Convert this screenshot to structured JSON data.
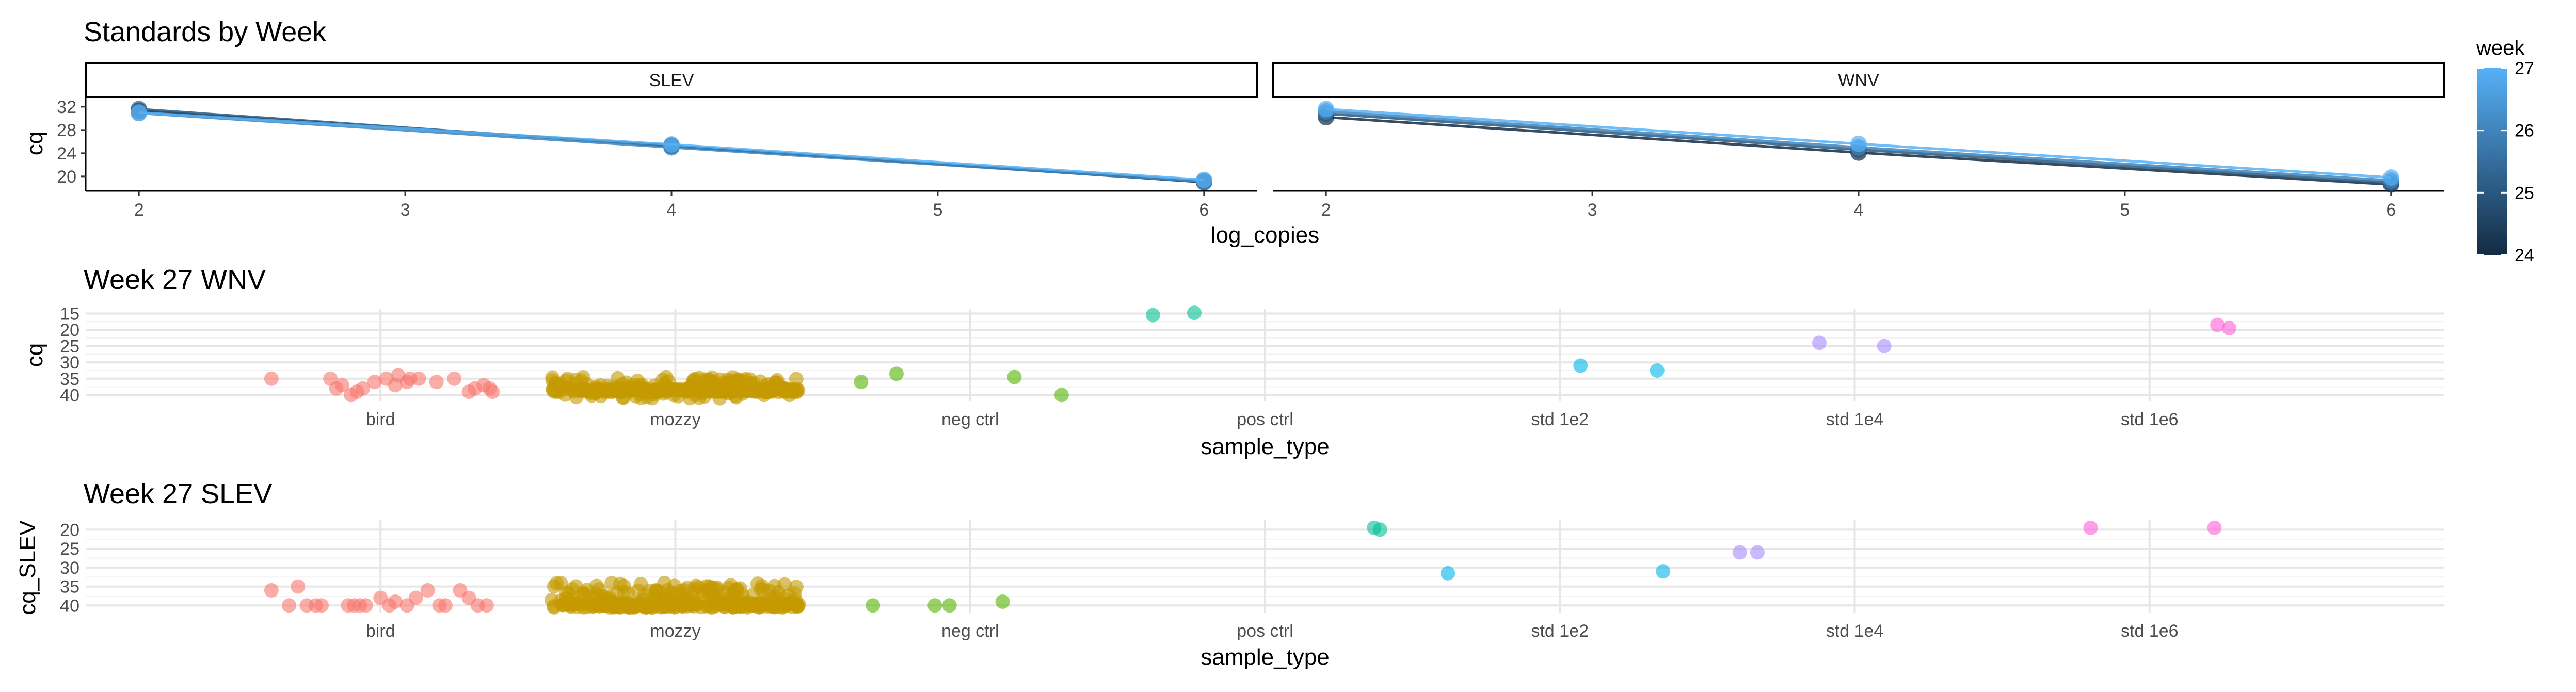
{
  "chart_data": [
    {
      "type": "line",
      "title": "Standards by Week",
      "xlabel": "log_copies",
      "ylabel": "cq",
      "xlim": [
        1.8,
        6.2
      ],
      "ylim": [
        17.5,
        33.5
      ],
      "xticks": [
        2,
        3,
        4,
        5,
        6
      ],
      "yticks": [
        20,
        24,
        28,
        32
      ],
      "grid": false,
      "facets": [
        {
          "strip": "SLEV",
          "series": [
            {
              "week": 24,
              "points": [
                [
                  2,
                  31.3
                ],
                [
                  4,
                  25.3
                ],
                [
                  6,
                  19.0
                ]
              ]
            },
            {
              "week": 25,
              "points": [
                [
                  2,
                  31.6
                ],
                [
                  4,
                  25.2
                ],
                [
                  6,
                  19.2
                ]
              ]
            },
            {
              "week": 26,
              "points": [
                [
                  2,
                  30.9
                ],
                [
                  4,
                  25.0
                ],
                [
                  6,
                  19.1
                ]
              ]
            },
            {
              "week": 27,
              "points": [
                [
                  2,
                  31.0
                ],
                [
                  4,
                  25.5
                ],
                [
                  6,
                  19.4
                ]
              ]
            }
          ]
        },
        {
          "strip": "WNV",
          "series": [
            {
              "week": 24,
              "points": [
                [
                  2,
                  30.2
                ],
                [
                  4,
                  24.1
                ],
                [
                  6,
                  18.6
                ]
              ]
            },
            {
              "week": 25,
              "points": [
                [
                  2,
                  30.8
                ],
                [
                  4,
                  24.6
                ],
                [
                  6,
                  18.9
                ]
              ]
            },
            {
              "week": 26,
              "points": [
                [
                  2,
                  31.2
                ],
                [
                  4,
                  25.0
                ],
                [
                  6,
                  19.3
                ]
              ]
            },
            {
              "week": 27,
              "points": [
                [
                  2,
                  31.6
                ],
                [
                  4,
                  25.6
                ],
                [
                  6,
                  19.8
                ]
              ]
            }
          ]
        }
      ],
      "legend": {
        "title": "week",
        "placement": "right",
        "min": 24,
        "max": 27,
        "ticks": [
          24,
          25,
          26,
          27
        ],
        "color_low": "#132B43",
        "color_high": "#56B1F7"
      }
    },
    {
      "type": "scatter",
      "title": "Week 27 WNV",
      "xlabel": "sample_type",
      "ylabel": "cq",
      "ylim": [
        42,
        13.5
      ],
      "y_reversed": true,
      "yticks": [
        15,
        20,
        25,
        30,
        35,
        40
      ],
      "grid": true,
      "categories": [
        "bird",
        "mozzy",
        "neg ctrl",
        "pos ctrl",
        "std 1e2",
        "std 1e4",
        "std 1e6"
      ],
      "colors": [
        "#F8766D",
        "#C49A00",
        "#53B400",
        "#00C094",
        "#00B6EB",
        "#A58AFF",
        "#FB61D7"
      ],
      "points": [
        {
          "category": "bird",
          "offsets": [
            -0.37,
            -0.17,
            -0.13,
            -0.1,
            -0.06,
            -0.02,
            0.02,
            0.06,
            0.09,
            0.13,
            0.19,
            0.25,
            0.32,
            0.35,
            0.38,
            -0.15,
            -0.08,
            0.05,
            0.1,
            0.3,
            0.37
          ],
          "values": [
            35,
            35,
            37,
            40,
            38,
            36,
            35,
            34,
            36,
            35,
            36,
            35,
            38,
            37,
            39,
            38,
            39,
            37,
            35,
            39,
            38
          ]
        },
        {
          "category": "mozzy",
          "n": 300,
          "offset_range": [
            -0.42,
            0.42
          ],
          "value_range": [
            34.5,
            41
          ],
          "value_mode": 38.5
        },
        {
          "category": "neg ctrl",
          "offsets": [
            -0.37,
            -0.25,
            0.15,
            0.31
          ],
          "values": [
            36,
            33.5,
            34.5,
            40
          ]
        },
        {
          "category": "pos ctrl",
          "offsets": [
            -0.38,
            -0.24
          ],
          "values": [
            15.5,
            14.8
          ]
        },
        {
          "category": "std 1e2",
          "offsets": [
            0.07,
            0.33
          ],
          "values": [
            31,
            32.5
          ]
        },
        {
          "category": "std 1e4",
          "offsets": [
            -0.12,
            0.1
          ],
          "values": [
            24,
            25
          ]
        },
        {
          "category": "std 1e6",
          "offsets": [
            0.23,
            0.27
          ],
          "values": [
            18.5,
            19.5
          ]
        }
      ]
    },
    {
      "type": "scatter",
      "title": "Week 27 SLEV",
      "xlabel": "sample_type",
      "ylabel": "cq_SLEV",
      "ylim": [
        42,
        17.5
      ],
      "y_reversed": true,
      "yticks": [
        20,
        25,
        30,
        35,
        40
      ],
      "grid": true,
      "categories": [
        "bird",
        "mozzy",
        "neg ctrl",
        "pos ctrl",
        "std 1e2",
        "std 1e4",
        "std 1e6"
      ],
      "colors": [
        "#F8766D",
        "#C49A00",
        "#53B400",
        "#00C094",
        "#00B6EB",
        "#A58AFF",
        "#FB61D7"
      ],
      "points": [
        {
          "category": "bird",
          "offsets": [
            -0.37,
            -0.31,
            -0.28,
            -0.25,
            -0.22,
            -0.2,
            -0.11,
            -0.09,
            -0.07,
            -0.05,
            0.0,
            0.03,
            0.05,
            0.09,
            0.12,
            0.16,
            0.2,
            0.22,
            0.27,
            0.3,
            0.33,
            0.36
          ],
          "values": [
            36,
            40,
            35,
            40,
            40,
            40,
            40,
            40,
            40,
            40,
            38,
            40,
            39,
            40,
            38,
            36,
            40,
            40,
            36,
            38,
            40,
            40
          ]
        },
        {
          "category": "mozzy",
          "n": 300,
          "offset_range": [
            -0.42,
            0.42
          ],
          "value_range": [
            34,
            40.5
          ],
          "value_mode": 40
        },
        {
          "category": "neg ctrl",
          "offsets": [
            -0.33,
            -0.12,
            -0.07,
            0.11
          ],
          "values": [
            40,
            40,
            40,
            39
          ]
        },
        {
          "category": "pos ctrl",
          "offsets": [
            0.37,
            0.39
          ],
          "values": [
            19.5,
            20
          ]
        },
        {
          "category": "std 1e2",
          "offsets": [
            -0.38,
            0.35
          ],
          "values": [
            31.5,
            31
          ]
        },
        {
          "category": "std 1e4",
          "offsets": [
            -0.39,
            -0.33
          ],
          "values": [
            26,
            26
          ]
        },
        {
          "category": "std 1e6",
          "offsets": [
            -0.2,
            0.22
          ],
          "values": [
            19.5,
            19.5
          ]
        }
      ]
    }
  ]
}
